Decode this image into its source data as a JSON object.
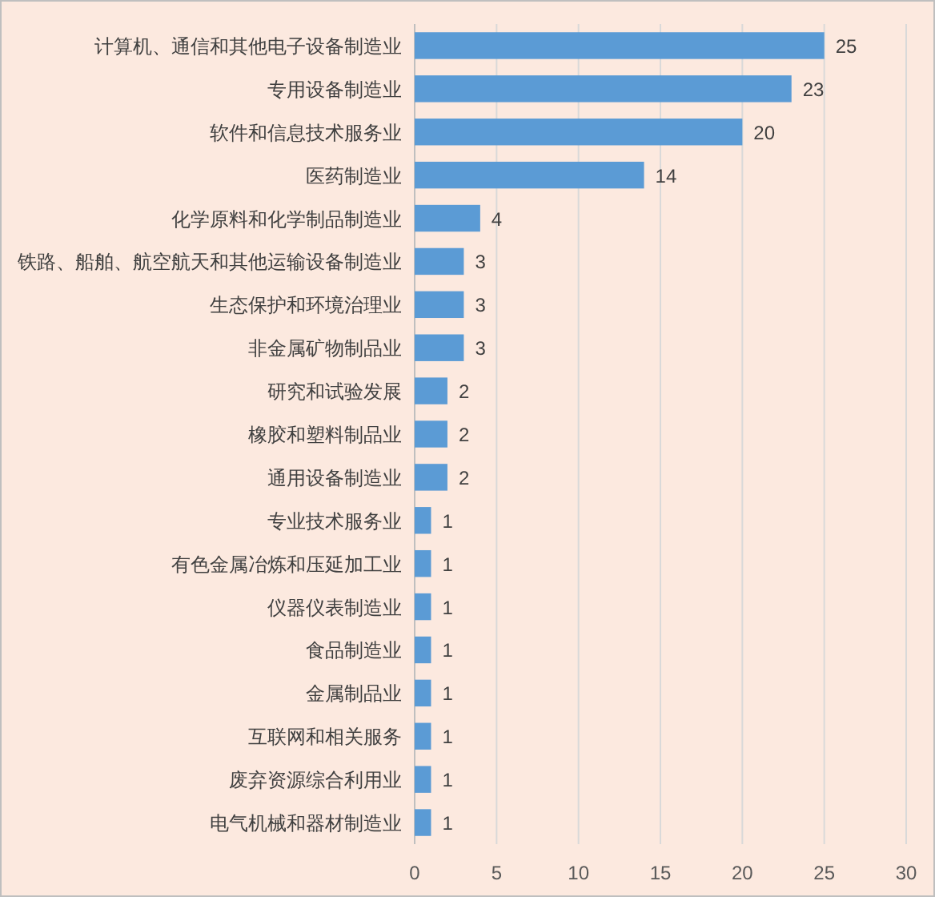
{
  "chart_data": {
    "type": "bar",
    "orientation": "horizontal",
    "categories": [
      "计算机、通信和其他电子设备制造业",
      "专用设备制造业",
      "软件和信息技术服务业",
      "医药制造业",
      "化学原料和化学制品制造业",
      "铁路、船舶、航空航天和其他运输设备制造业",
      "生态保护和环境治理业",
      "非金属矿物制品业",
      "研究和试验发展",
      "橡胶和塑料制品业",
      "通用设备制造业",
      "专业技术服务业",
      "有色金属冶炼和压延加工业",
      "仪器仪表制造业",
      "食品制造业",
      "金属制品业",
      "互联网和相关服务",
      "废弃资源综合利用业",
      "电气机械和器材制造业"
    ],
    "values": [
      25,
      23,
      20,
      14,
      4,
      3,
      3,
      3,
      2,
      2,
      2,
      1,
      1,
      1,
      1,
      1,
      1,
      1,
      1
    ],
    "color": "#5b9bd5",
    "xlim": [
      0,
      30
    ],
    "xticks": [
      0,
      5,
      10,
      15,
      20,
      25,
      30
    ],
    "grid": "x",
    "data_labels": true
  }
}
